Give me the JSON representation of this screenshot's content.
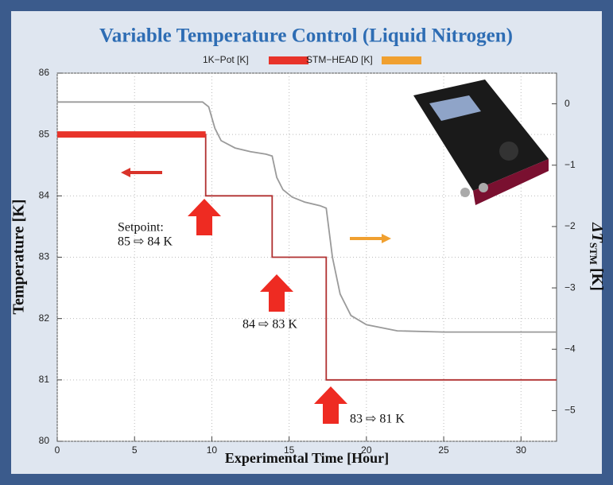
{
  "chart_data": {
    "type": "line",
    "title": "Variable Temperature Control (Liquid Nitrogen)",
    "x_label": "Experimental Time [Hour]",
    "y_label": "Temperature [K]",
    "y2_label": {
      "main": "ΔT",
      "sub": "STM",
      "unit": "[K]"
    },
    "xlim": [
      0,
      32.3
    ],
    "xticks": [
      0,
      5,
      10,
      15,
      20,
      25,
      30
    ],
    "ylim": [
      80,
      86
    ],
    "yticks": [
      80,
      81,
      82,
      83,
      84,
      85,
      86
    ],
    "y2lim": [
      -5.5,
      0.5
    ],
    "y2ticks": [
      {
        "value": -5,
        "label": "−5"
      },
      {
        "value": -4,
        "label": "−4"
      },
      {
        "value": -3,
        "label": "−3"
      },
      {
        "value": -2,
        "label": "−2"
      },
      {
        "value": -1,
        "label": "−1"
      },
      0
    ],
    "grid": true,
    "legend_position": "top",
    "series": [
      {
        "name": "1K−Pot [K]",
        "color": "#e8332a",
        "line_color": "#b03030",
        "x": [
          0,
          9.6,
          9.6,
          13.9,
          13.9,
          17.4,
          17.4,
          32.3
        ],
        "values": [
          85,
          85,
          84,
          84,
          83,
          83,
          81,
          81
        ]
      },
      {
        "name": "STM−HEAD [K]",
        "color": "#f0a030",
        "line_color": "#9a9a9a",
        "axis": "y2",
        "x": [
          0,
          9.4,
          9.8,
          10.2,
          10.6,
          11.5,
          12.5,
          13.5,
          13.9,
          14.2,
          14.6,
          15.2,
          16,
          17,
          17.4,
          17.8,
          18.3,
          19,
          20,
          22,
          25,
          32.3
        ],
        "values": [
          0.03,
          0.03,
          -0.05,
          -0.4,
          -0.6,
          -0.72,
          -0.78,
          -0.82,
          -0.85,
          -1.2,
          -1.4,
          -1.52,
          -1.6,
          -1.66,
          -1.7,
          -2.5,
          -3.1,
          -3.45,
          -3.6,
          -3.7,
          -3.72,
          -3.72
        ]
      }
    ],
    "annotations": [
      [
        "Setpoint:",
        "85 ⇨ 84 K"
      ],
      [
        "84 ⇨ 83 K"
      ],
      [
        "83 ⇨ 81 K"
      ]
    ]
  }
}
